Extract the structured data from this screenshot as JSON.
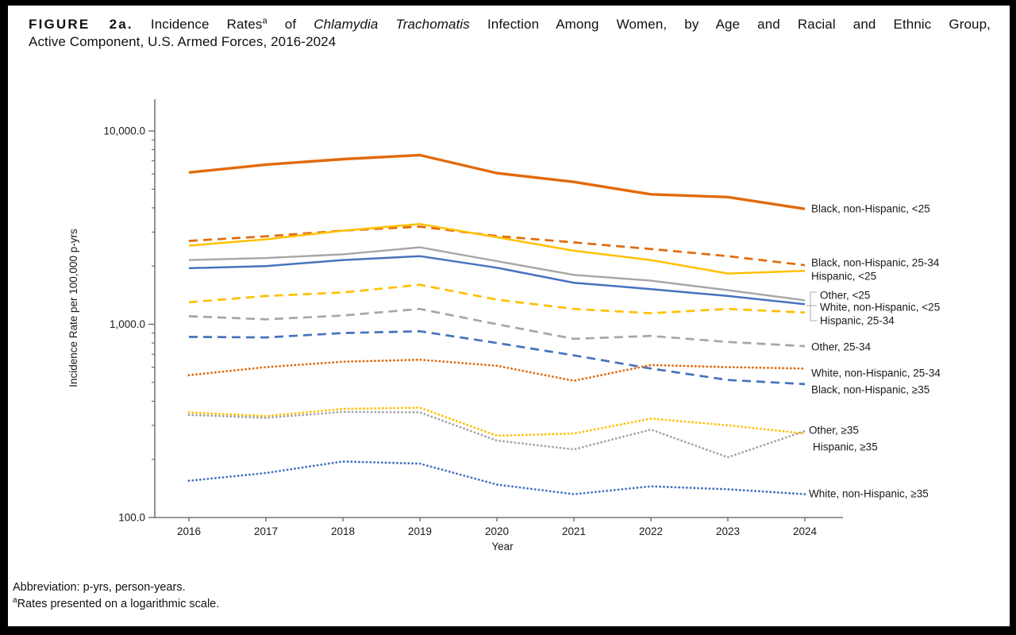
{
  "page": {
    "title": {
      "figure_label": "FIGURE 2a.",
      "line1_part1": "Incidence Rates",
      "footnote_marker": "a",
      "line1_part2": "of",
      "line1_italic": "Chlamydia Trachomatis",
      "line1_part3": "Infection Among Women, by Age and Racial and Ethnic Group,",
      "line2": "Active Component, U.S. Armed Forces, 2016-2024"
    },
    "footnotes": {
      "abbreviation": "Abbreviation: p-yrs, person-years.",
      "footnote_a_marker": "a",
      "footnote_a_text": "Rates presented on a logarithmic scale."
    }
  },
  "chart_data": {
    "type": "line",
    "title": "FIGURE 2a. Incidence Rates of Chlamydia Trachomatis Infection Among Women, by Age and Racial and Ethnic Group, Active Component, U.S. Armed Forces, 2016-2024",
    "xlabel": "Year",
    "ylabel": "Incidence Rate per 100,000 p-yrs",
    "y_scale": "log",
    "grid": false,
    "legend_position": "right-end-labels",
    "x": [
      2016,
      2017,
      2018,
      2019,
      2020,
      2021,
      2022,
      2023,
      2024
    ],
    "y_ticks": [
      "10,000.0",
      "1,000.0",
      "100.0"
    ],
    "y_tick_values": [
      10000,
      1000,
      100
    ],
    "ylim": [
      100,
      15000
    ],
    "colors": {
      "orange": "#E26A0B",
      "gold": "#FFC000",
      "gray": "#A6A6A6",
      "blue": "#4573BE",
      "axis": "#595959",
      "leader": "#a9a9a9"
    },
    "series": [
      {
        "name": "Black, non-Hispanic, <25",
        "color": "orange",
        "style": "solid",
        "width": 3.4,
        "values": [
          6100,
          6700,
          7150,
          7500,
          6050,
          5450,
          4700,
          4550,
          3950
        ]
      },
      {
        "name": "Black, non-Hispanic, 25-34",
        "color": "orange",
        "style": "dashed",
        "width": 2.7,
        "values": [
          2700,
          2850,
          3050,
          3200,
          2860,
          2650,
          2450,
          2250,
          2020
        ]
      },
      {
        "name": "Hispanic, <25",
        "color": "gold",
        "style": "solid",
        "width": 2.5,
        "values": [
          2550,
          2750,
          3050,
          3300,
          2820,
          2400,
          2150,
          1830,
          1890
        ]
      },
      {
        "name": "Other, <25",
        "color": "gray",
        "style": "solid",
        "width": 2.4,
        "values": [
          2150,
          2200,
          2300,
          2500,
          2120,
          1800,
          1680,
          1500,
          1330
        ]
      },
      {
        "name": "White, non-Hispanic, <25",
        "color": "blue",
        "style": "solid",
        "width": 2.5,
        "values": [
          1950,
          2000,
          2150,
          2250,
          1960,
          1640,
          1520,
          1400,
          1270
        ]
      },
      {
        "name": "Hispanic, 25-34",
        "color": "gold",
        "style": "dashed",
        "width": 2.7,
        "values": [
          1300,
          1400,
          1460,
          1600,
          1340,
          1200,
          1140,
          1200,
          1150
        ]
      },
      {
        "name": "Other, 25-34",
        "color": "gray",
        "style": "dashed",
        "width": 2.7,
        "values": [
          1100,
          1060,
          1110,
          1200,
          1000,
          840,
          870,
          810,
          770
        ]
      },
      {
        "name": "White, non-Hispanic, 25-34",
        "color": "blue",
        "style": "dashed",
        "width": 2.7,
        "values": [
          860,
          855,
          900,
          920,
          800,
          690,
          590,
          515,
          490
        ]
      },
      {
        "name": "Black, non-Hispanic, ≥35",
        "color": "orange",
        "style": "dotted",
        "width": 2.8,
        "values": [
          545,
          600,
          640,
          655,
          610,
          510,
          615,
          600,
          590
        ]
      },
      {
        "name": "Other, ≥35",
        "color": "gold",
        "style": "dotted",
        "width": 2.8,
        "values": [
          350,
          335,
          365,
          370,
          265,
          272,
          325,
          300,
          272
        ]
      },
      {
        "name": "Hispanic, ≥35",
        "color": "gray",
        "style": "dotted",
        "width": 2.8,
        "values": [
          340,
          328,
          352,
          350,
          250,
          225,
          285,
          205,
          280
        ]
      },
      {
        "name": "White, non-Hispanic, ≥35",
        "color": "blue",
        "style": "dotted",
        "width": 2.8,
        "values": [
          155,
          170,
          195,
          190,
          148,
          132,
          145,
          140,
          132
        ]
      }
    ]
  }
}
